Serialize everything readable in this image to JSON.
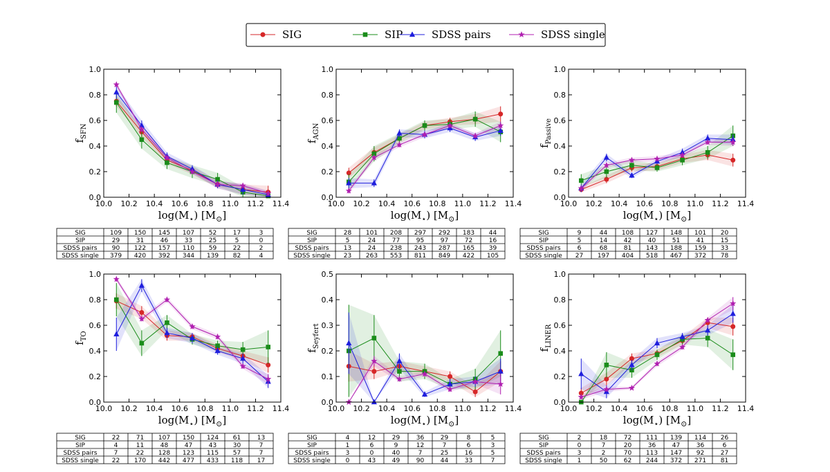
{
  "legend": {
    "entries": [
      {
        "name": "SIG",
        "color": "#d62728",
        "marker": "circle"
      },
      {
        "name": "SIP",
        "color": "#1a8c1a",
        "marker": "square"
      },
      {
        "name": "SDSS pairs",
        "color": "#1f1fdd",
        "marker": "triangle"
      },
      {
        "name": "SDSS single",
        "color": "#b01fb0",
        "marker": "star"
      }
    ]
  },
  "chart_data": [
    {
      "type": "line",
      "id": "sfn",
      "ylabel": "f",
      "ylabel_sub": "SFN",
      "xlabel": "log(M",
      "xlabel_sub": "⋆",
      "xlabel_tail": ") [M",
      "xlabel_sub2": "⊙",
      "xlabel_end": "]",
      "xlim": [
        10.0,
        11.4
      ],
      "ylim": [
        0.0,
        1.0
      ],
      "xticks": [
        "10.0",
        "10.2",
        "10.4",
        "10.6",
        "10.8",
        "11.0",
        "11.2",
        "11.4"
      ],
      "yticks": [
        "0.0",
        "0.2",
        "0.4",
        "0.6",
        "0.8",
        "1.0"
      ],
      "x": [
        10.1,
        10.3,
        10.5,
        10.7,
        10.9,
        11.1,
        11.3
      ],
      "series": [
        {
          "name": "SIG",
          "values": [
            0.75,
            0.51,
            0.29,
            0.21,
            0.1,
            0.06,
            0.04
          ],
          "err": [
            0.04,
            0.04,
            0.03,
            0.03,
            0.03,
            0.04,
            0.05
          ]
        },
        {
          "name": "SIP",
          "values": [
            0.74,
            0.45,
            0.27,
            0.2,
            0.14,
            0.04,
            0.01
          ],
          "err": [
            0.08,
            0.07,
            0.05,
            0.05,
            0.05,
            0.04,
            0.02
          ]
        },
        {
          "name": "SDSS pairs",
          "values": [
            0.82,
            0.56,
            0.32,
            0.22,
            0.1,
            0.06,
            0.02
          ],
          "err": [
            0.05,
            0.04,
            0.03,
            0.03,
            0.03,
            0.04,
            0.03
          ]
        },
        {
          "name": "SDSS single",
          "values": [
            0.88,
            0.53,
            0.31,
            0.2,
            0.1,
            0.09,
            0.03
          ],
          "err": [
            0.02,
            0.02,
            0.02,
            0.02,
            0.02,
            0.02,
            0.02
          ]
        }
      ],
      "table": {
        "rows": [
          {
            "label": "SIG",
            "values": [
              "109",
              "150",
              "145",
              "107",
              "52",
              "17",
              "3"
            ]
          },
          {
            "label": "SIP",
            "values": [
              "29",
              "31",
              "46",
              "33",
              "25",
              "5",
              "0"
            ]
          },
          {
            "label": "SDSS pairs",
            "values": [
              "90",
              "122",
              "157",
              "110",
              "59",
              "22",
              "2"
            ]
          },
          {
            "label": "SDSS single",
            "values": [
              "379",
              "420",
              "392",
              "344",
              "139",
              "82",
              "4"
            ]
          }
        ]
      }
    },
    {
      "type": "line",
      "id": "agn",
      "ylabel": "f",
      "ylabel_sub": "AGN",
      "xlabel": "log(M",
      "xlabel_sub": "⋆",
      "xlabel_tail": ") [M",
      "xlabel_sub2": "⊙",
      "xlabel_end": "]",
      "xlim": [
        10.0,
        11.4
      ],
      "ylim": [
        0.0,
        1.0
      ],
      "xticks": [
        "10.0",
        "10.2",
        "10.4",
        "10.6",
        "10.8",
        "11.0",
        "11.2",
        "11.4"
      ],
      "yticks": [
        "0.0",
        "0.2",
        "0.4",
        "0.6",
        "0.8",
        "1.0"
      ],
      "x": [
        10.1,
        10.3,
        10.5,
        10.7,
        10.9,
        11.1,
        11.3
      ],
      "series": [
        {
          "name": "SIG",
          "values": [
            0.19,
            0.35,
            0.46,
            0.56,
            0.59,
            0.61,
            0.65
          ],
          "err": [
            0.04,
            0.04,
            0.03,
            0.03,
            0.03,
            0.04,
            0.06
          ]
        },
        {
          "name": "SIP",
          "values": [
            0.12,
            0.34,
            0.46,
            0.56,
            0.57,
            0.61,
            0.51
          ],
          "err": [
            0.06,
            0.06,
            0.04,
            0.04,
            0.04,
            0.06,
            0.08
          ]
        },
        {
          "name": "SDSS pairs",
          "values": [
            0.11,
            0.11,
            0.5,
            0.49,
            0.54,
            0.47,
            0.52
          ],
          "err": [
            0.04,
            0.03,
            0.03,
            0.03,
            0.03,
            0.03,
            0.04
          ]
        },
        {
          "name": "SDSS single",
          "values": [
            0.05,
            0.31,
            0.41,
            0.49,
            0.56,
            0.48,
            0.56
          ],
          "err": [
            0.02,
            0.02,
            0.02,
            0.02,
            0.02,
            0.02,
            0.03
          ]
        }
      ],
      "table": {
        "rows": [
          {
            "label": "SIG",
            "values": [
              "28",
              "101",
              "208",
              "297",
              "292",
              "183",
              "44"
            ]
          },
          {
            "label": "SIP",
            "values": [
              "5",
              "24",
              "77",
              "95",
              "97",
              "72",
              "16"
            ]
          },
          {
            "label": "SDSS pairs",
            "values": [
              "13",
              "24",
              "238",
              "243",
              "287",
              "165",
              "39"
            ]
          },
          {
            "label": "SDSS single",
            "values": [
              "23",
              "263",
              "553",
              "811",
              "849",
              "422",
              "105"
            ]
          }
        ]
      }
    },
    {
      "type": "line",
      "id": "passive",
      "ylabel": "f",
      "ylabel_sub": "Passive",
      "xlabel": "log(M",
      "xlabel_sub": "⋆",
      "xlabel_tail": ") [M",
      "xlabel_sub2": "⊙",
      "xlabel_end": "]",
      "xlim": [
        10.0,
        11.4
      ],
      "ylim": [
        0.0,
        1.0
      ],
      "xticks": [
        "10.0",
        "10.2",
        "10.4",
        "10.6",
        "10.8",
        "11.0",
        "11.2",
        "11.4"
      ],
      "yticks": [
        "0.0",
        "0.2",
        "0.4",
        "0.6",
        "0.8",
        "1.0"
      ],
      "x": [
        10.1,
        10.3,
        10.5,
        10.7,
        10.9,
        11.1,
        11.3
      ],
      "series": [
        {
          "name": "SIG",
          "values": [
            0.06,
            0.14,
            0.23,
            0.24,
            0.3,
            0.33,
            0.29
          ],
          "err": [
            0.02,
            0.03,
            0.03,
            0.03,
            0.03,
            0.04,
            0.05
          ]
        },
        {
          "name": "SIP",
          "values": [
            0.13,
            0.2,
            0.25,
            0.23,
            0.29,
            0.35,
            0.48
          ],
          "err": [
            0.05,
            0.05,
            0.04,
            0.03,
            0.04,
            0.05,
            0.08
          ]
        },
        {
          "name": "SDSS pairs",
          "values": [
            0.07,
            0.31,
            0.17,
            0.28,
            0.35,
            0.46,
            0.45
          ],
          "err": [
            0.03,
            0.03,
            0.02,
            0.02,
            0.03,
            0.03,
            0.04
          ]
        },
        {
          "name": "SDSS single",
          "values": [
            0.07,
            0.25,
            0.29,
            0.3,
            0.33,
            0.43,
            0.43
          ],
          "err": [
            0.02,
            0.02,
            0.02,
            0.02,
            0.02,
            0.02,
            0.03
          ]
        }
      ],
      "table": {
        "rows": [
          {
            "label": "SIG",
            "values": [
              "9",
              "44",
              "108",
              "127",
              "148",
              "101",
              "20"
            ]
          },
          {
            "label": "SIP",
            "values": [
              "5",
              "14",
              "42",
              "40",
              "51",
              "41",
              "15"
            ]
          },
          {
            "label": "SDSS pairs",
            "values": [
              "6",
              "68",
              "81",
              "143",
              "188",
              "159",
              "33"
            ]
          },
          {
            "label": "SDSS single",
            "values": [
              "27",
              "197",
              "404",
              "518",
              "467",
              "372",
              "78"
            ]
          }
        ]
      }
    },
    {
      "type": "line",
      "id": "to",
      "ylabel": "f",
      "ylabel_sub": "TO",
      "xlabel": "log(M",
      "xlabel_sub": "⋆",
      "xlabel_tail": ") [M",
      "xlabel_sub2": "⊙",
      "xlabel_end": "]",
      "xlim": [
        10.0,
        11.4
      ],
      "ylim": [
        0.0,
        1.0
      ],
      "xticks": [
        "10.0",
        "10.2",
        "10.4",
        "10.6",
        "10.8",
        "11.0",
        "11.2",
        "11.4"
      ],
      "yticks": [
        "0.0",
        "0.2",
        "0.4",
        "0.6",
        "0.8",
        "1.0"
      ],
      "x": [
        10.1,
        10.3,
        10.5,
        10.7,
        10.9,
        11.1,
        11.3
      ],
      "series": [
        {
          "name": "SIG",
          "values": [
            0.79,
            0.7,
            0.52,
            0.51,
            0.42,
            0.36,
            0.29
          ],
          "err": [
            0.06,
            0.05,
            0.04,
            0.03,
            0.03,
            0.04,
            0.06
          ]
        },
        {
          "name": "SIP",
          "values": [
            0.8,
            0.46,
            0.62,
            0.49,
            0.44,
            0.41,
            0.43
          ],
          "err": [
            0.13,
            0.1,
            0.06,
            0.04,
            0.04,
            0.06,
            0.13
          ]
        },
        {
          "name": "SDSS pairs",
          "values": [
            0.53,
            0.91,
            0.54,
            0.5,
            0.4,
            0.34,
            0.16
          ],
          "err": [
            0.13,
            0.05,
            0.04,
            0.04,
            0.03,
            0.04,
            0.05
          ]
        },
        {
          "name": "SDSS single",
          "values": [
            0.96,
            0.65,
            0.8,
            0.59,
            0.51,
            0.28,
            0.18
          ],
          "err": [
            0.02,
            0.02,
            0.02,
            0.02,
            0.02,
            0.02,
            0.04
          ]
        }
      ],
      "table": {
        "rows": [
          {
            "label": "SIG",
            "values": [
              "22",
              "71",
              "107",
              "150",
              "124",
              "61",
              "13"
            ]
          },
          {
            "label": "SIP",
            "values": [
              "4",
              "11",
              "48",
              "47",
              "43",
              "30",
              "7"
            ]
          },
          {
            "label": "SDSS pairs",
            "values": [
              "7",
              "22",
              "128",
              "123",
              "115",
              "57",
              "7"
            ]
          },
          {
            "label": "SDSS single",
            "values": [
              "22",
              "170",
              "442",
              "477",
              "433",
              "118",
              "17"
            ]
          }
        ]
      }
    },
    {
      "type": "line",
      "id": "seyfert",
      "ylabel": "f",
      "ylabel_sub": "Seyfert",
      "xlabel": "log(M",
      "xlabel_sub": "⋆",
      "xlabel_tail": ") [M",
      "xlabel_sub2": "⊙",
      "xlabel_end": "]",
      "xlim": [
        10.0,
        11.4
      ],
      "ylim": [
        0.0,
        0.5
      ],
      "xticks": [
        "10.0",
        "10.2",
        "10.4",
        "10.6",
        "10.8",
        "11.0",
        "11.2",
        "11.4"
      ],
      "yticks": [
        "0.0",
        "0.1",
        "0.2",
        "0.3",
        "0.4",
        "0.5"
      ],
      "x": [
        10.1,
        10.3,
        10.5,
        10.7,
        10.9,
        11.1,
        11.3
      ],
      "series": [
        {
          "name": "SIG",
          "values": [
            0.14,
            0.12,
            0.14,
            0.12,
            0.1,
            0.04,
            0.12
          ],
          "err": [
            0.06,
            0.03,
            0.02,
            0.02,
            0.02,
            0.02,
            0.04
          ]
        },
        {
          "name": "SIP",
          "values": [
            0.2,
            0.25,
            0.12,
            0.12,
            0.07,
            0.09,
            0.19
          ],
          "err": [
            0.18,
            0.09,
            0.04,
            0.03,
            0.02,
            0.04,
            0.09
          ]
        },
        {
          "name": "SDSS pairs",
          "values": [
            0.23,
            0.0,
            0.16,
            0.03,
            0.07,
            0.08,
            0.12
          ],
          "err": [
            0.12,
            0.0,
            0.03,
            0.01,
            0.02,
            0.02,
            0.05
          ]
        },
        {
          "name": "SDSS single",
          "values": [
            0.0,
            0.16,
            0.09,
            0.11,
            0.05,
            0.08,
            0.07
          ],
          "err": [
            0.0,
            0.02,
            0.01,
            0.01,
            0.01,
            0.01,
            0.04
          ]
        }
      ],
      "table": {
        "rows": [
          {
            "label": "SIG",
            "values": [
              "4",
              "12",
              "29",
              "36",
              "29",
              "8",
              "5"
            ]
          },
          {
            "label": "SIP",
            "values": [
              "1",
              "6",
              "9",
              "12",
              "7",
              "6",
              "3"
            ]
          },
          {
            "label": "SDSS pairs",
            "values": [
              "3",
              "0",
              "40",
              "7",
              "25",
              "16",
              "5"
            ]
          },
          {
            "label": "SDSS single",
            "values": [
              "0",
              "43",
              "49",
              "90",
              "44",
              "33",
              "7"
            ]
          }
        ]
      }
    },
    {
      "type": "line",
      "id": "liner",
      "ylabel": "f",
      "ylabel_sub": "LINER",
      "xlabel": "log(M",
      "xlabel_sub": "⋆",
      "xlabel_tail": ") [M",
      "xlabel_sub2": "⊙",
      "xlabel_end": "]",
      "xlim": [
        10.0,
        11.4
      ],
      "ylim": [
        0.0,
        1.0
      ],
      "xticks": [
        "10.0",
        "10.2",
        "10.4",
        "10.6",
        "10.8",
        "11.0",
        "11.2",
        "11.4"
      ],
      "yticks": [
        "0.0",
        "0.2",
        "0.4",
        "0.6",
        "0.8",
        "1.0"
      ],
      "x": [
        10.1,
        10.3,
        10.5,
        10.7,
        10.9,
        11.1,
        11.3
      ],
      "series": [
        {
          "name": "SIG",
          "values": [
            0.07,
            0.18,
            0.34,
            0.38,
            0.48,
            0.62,
            0.59
          ],
          "err": [
            0.04,
            0.05,
            0.04,
            0.03,
            0.03,
            0.04,
            0.07
          ]
        },
        {
          "name": "SIP",
          "values": [
            0.0,
            0.29,
            0.25,
            0.37,
            0.49,
            0.5,
            0.37
          ],
          "err": [
            0.0,
            0.1,
            0.06,
            0.04,
            0.04,
            0.07,
            0.12
          ]
        },
        {
          "name": "SDSS pairs",
          "values": [
            0.22,
            0.08,
            0.29,
            0.46,
            0.51,
            0.56,
            0.69
          ],
          "err": [
            0.12,
            0.05,
            0.04,
            0.04,
            0.03,
            0.04,
            0.07
          ]
        },
        {
          "name": "SDSS single",
          "values": [
            0.04,
            0.1,
            0.11,
            0.3,
            0.43,
            0.64,
            0.77
          ],
          "err": [
            0.02,
            0.02,
            0.01,
            0.02,
            0.02,
            0.02,
            0.05
          ]
        }
      ],
      "table": {
        "rows": [
          {
            "label": "SIG",
            "values": [
              "2",
              "18",
              "72",
              "111",
              "139",
              "114",
              "26"
            ]
          },
          {
            "label": "SIP",
            "values": [
              "0",
              "7",
              "20",
              "36",
              "47",
              "36",
              "6"
            ]
          },
          {
            "label": "SDSS pairs",
            "values": [
              "3",
              "2",
              "70",
              "113",
              "147",
              "92",
              "27"
            ]
          },
          {
            "label": "SDSS single",
            "values": [
              "1",
              "50",
              "62",
              "244",
              "372",
              "271",
              "81"
            ]
          }
        ]
      }
    }
  ]
}
